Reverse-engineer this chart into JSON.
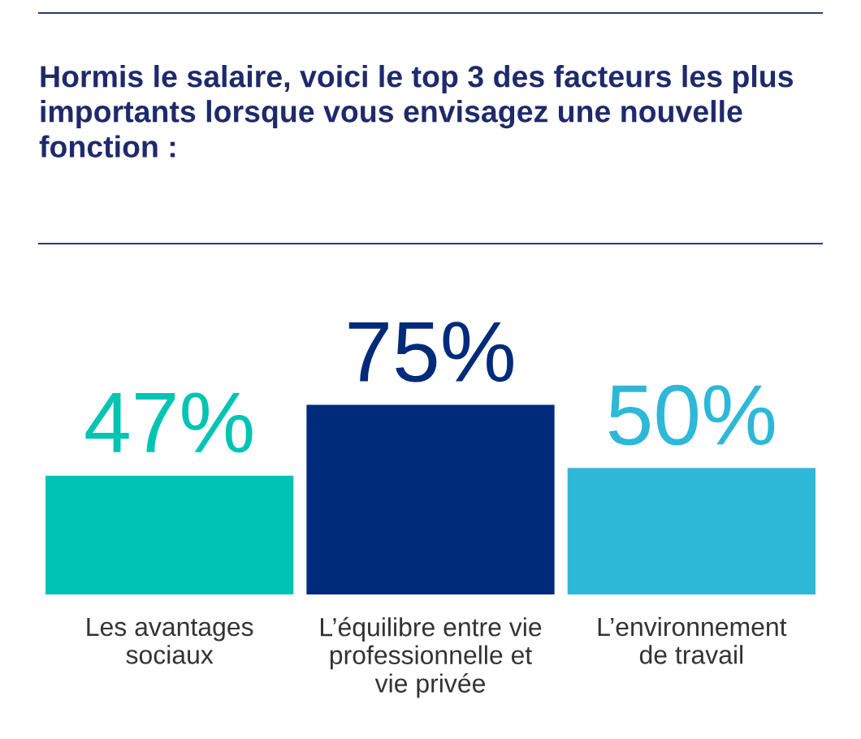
{
  "chart_data": {
    "type": "bar",
    "title": "Hormis le salaire, voici le top 3 des facteurs les plus importants lorsque vous envisagez une nouvelle fonction :",
    "categories": [
      "Les avantages\nsociaux",
      "L’équilibre entre vie\nprofessionnelle et\nvie privée",
      "L’environnement\nde travail"
    ],
    "values": [
      47,
      75,
      50
    ],
    "colors": [
      "#00c4b3",
      "#002a7a",
      "#2eb8d8"
    ],
    "value_labels": [
      "47%",
      "75%",
      "50%"
    ],
    "grid": false,
    "legend": false
  }
}
